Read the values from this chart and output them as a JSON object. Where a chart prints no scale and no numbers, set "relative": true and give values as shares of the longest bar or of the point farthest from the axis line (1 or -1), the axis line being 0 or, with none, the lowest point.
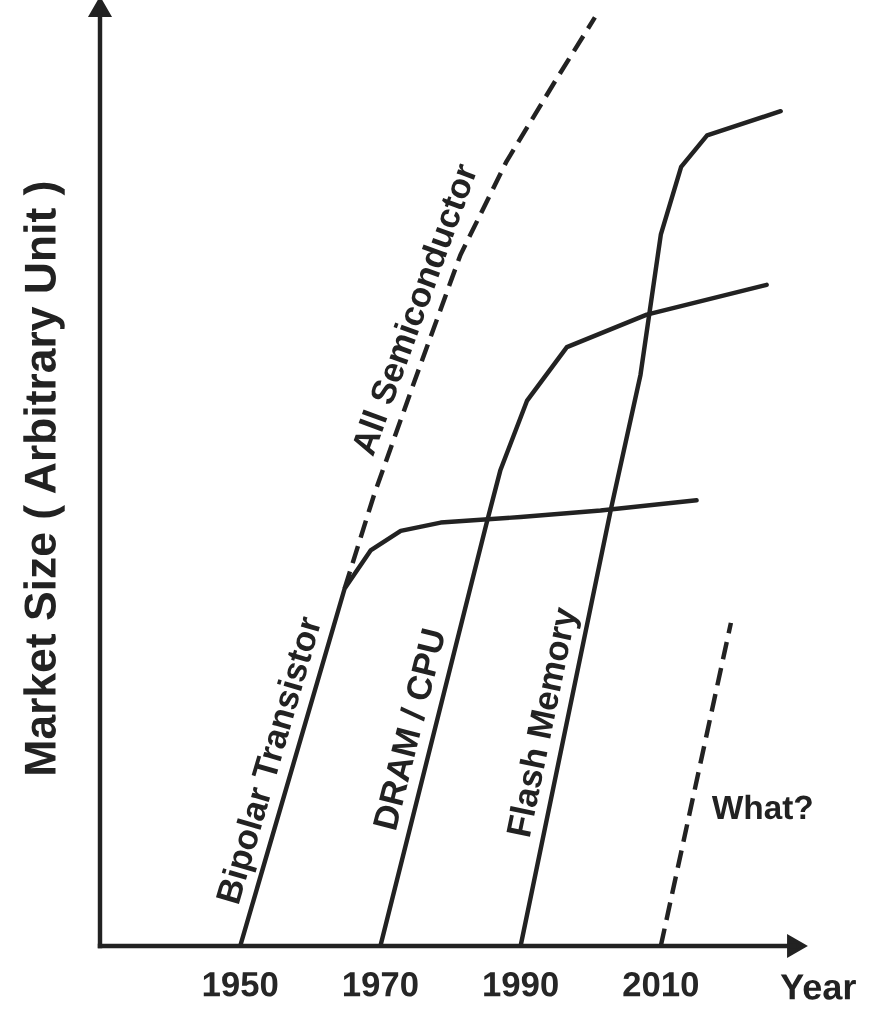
{
  "chart_data": {
    "type": "line",
    "relative": true,
    "xlabel": "Year",
    "ylabel": "Market Size ( Arbitrary Unit )",
    "xlim": [
      1930,
      2029
    ],
    "xticks": [
      1950,
      1970,
      1990,
      2010
    ],
    "grid": false,
    "tick_labels": "x",
    "annotations": [
      "What?"
    ],
    "series": [
      {
        "name": "Bipolar Transistor",
        "color": "#222222",
        "line_style": "solid",
        "x": [
          1950,
          1964.9,
          1968.6,
          1972.9,
          1978.6,
          1990,
          2001.4,
          2015.1
        ],
        "values": [
          0,
          0.385,
          0.426,
          0.447,
          0.456,
          0.462,
          0.469,
          0.48
        ]
      },
      {
        "name": "All Semiconductor",
        "color": "#222222",
        "line_style": "dashed",
        "x": [
          1964.9,
          1969.1,
          1974.9,
          1981.4,
          1988.0,
          1994.9,
          2000.6
        ],
        "values": [
          0.385,
          0.486,
          0.609,
          0.744,
          0.845,
          0.931,
          1.0
        ]
      },
      {
        "name": "DRAM / CPU",
        "color": "#222222",
        "line_style": "solid",
        "x": [
          1970,
          1985.1,
          1987.1,
          1990.9,
          1996.6,
          2008,
          2025.1
        ],
        "values": [
          0,
          0.454,
          0.512,
          0.587,
          0.645,
          0.68,
          0.712
        ]
      },
      {
        "name": "Flash Memory",
        "color": "#222222",
        "line_style": "solid",
        "x": [
          1990,
          2002.9,
          2007.1,
          2010,
          2012.9,
          2016.6,
          2027.1
        ],
        "values": [
          0,
          0.471,
          0.615,
          0.766,
          0.839,
          0.873,
          0.899
        ]
      },
      {
        "color": "#222222",
        "line_style": "dashed",
        "x": [
          2010,
          2020
        ],
        "values": [
          0,
          0.348
        ]
      }
    ]
  }
}
